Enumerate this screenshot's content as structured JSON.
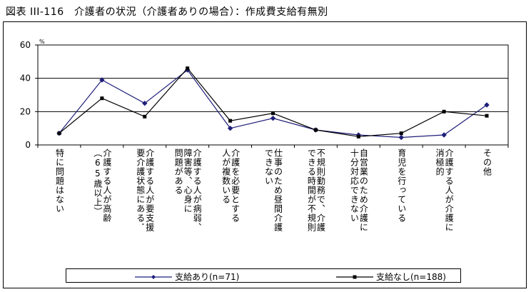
{
  "title": "図表 III-116　介護者の状況（介護者ありの場合）：作成費支給有無別",
  "chart_data": {
    "type": "line",
    "unit": "%",
    "ylim": [
      0,
      60
    ],
    "yticks": [
      "0",
      "20",
      "40",
      "60"
    ],
    "grid": true,
    "legend_position": "bottom",
    "categories": [
      "特に問題はない",
      "介護する人が高齢（65歳以上）",
      "要介護状態にある．介護する人が要支援",
      "介護する人が病弱，障害等、心身に問題がある",
      "介護を必要とする人が複数いる",
      "仕事のため昼間介護できない",
      "不規則勤務で、介護できる時間が不規則",
      "自営業のため介護に十分対応できない",
      "育児を行っている",
      "介護する人が介護に消極的",
      "その他"
    ],
    "label_lines": [
      [
        "特に問題はない"
      ],
      [
        "介護する人が高齢",
        "（65歳以上）"
      ],
      [
        "介護する人が要支援",
        "要介護状態にある．"
      ],
      [
        "介護する人が病弱、",
        "障害等、心身に",
        "問題がある"
      ],
      [
        "介護を必要とする",
        "人が複数いる"
      ],
      [
        "仕事のため昼間介護",
        "できない"
      ],
      [
        "不規則勤務で、介護",
        "できる時間が不規則"
      ],
      [
        "自営業のため介護に",
        "十分対応できない"
      ],
      [
        "育児を行っている"
      ],
      [
        "介護する人が介護に",
        "消極的"
      ],
      [
        "その他"
      ]
    ],
    "series": [
      {
        "name": "支給あり(n=71)",
        "color": "#1f1f7a",
        "marker": "diamond",
        "values": [
          7,
          39,
          25,
          45,
          10,
          16,
          9,
          6,
          4.5,
          6,
          24
        ]
      },
      {
        "name": "支給なし(n=188)",
        "color": "#000000",
        "marker": "square",
        "values": [
          7,
          28,
          17,
          46,
          14.5,
          19,
          9,
          5,
          7,
          20,
          17.5
        ]
      }
    ]
  }
}
